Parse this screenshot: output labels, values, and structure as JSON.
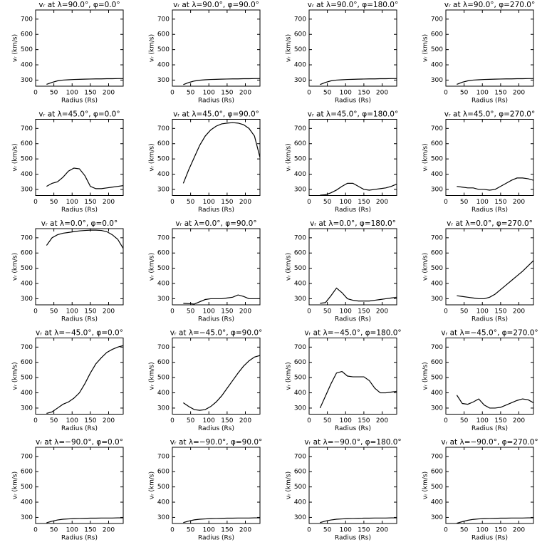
{
  "chart_data": [
    {
      "type": "line",
      "title": "vᵣ at λ=90.0°, φ=0.0°",
      "xlabel": "Radius (Rs)",
      "ylabel": "vᵣ (km/s)",
      "color": "#000000",
      "x": [
        30,
        45,
        60,
        75,
        90,
        105,
        120,
        135,
        150,
        165,
        180,
        195,
        210,
        225,
        240
      ],
      "values": [
        272,
        285,
        295,
        300,
        302,
        304,
        305,
        306,
        307,
        308,
        308,
        309,
        309,
        310,
        310
      ],
      "xlim": [
        0,
        240
      ],
      "ylim": [
        260,
        760
      ],
      "xticks": [
        0,
        50,
        100,
        150,
        200
      ],
      "yticks": [
        300,
        400,
        500,
        600,
        700
      ]
    },
    {
      "type": "line",
      "title": "vᵣ at λ=90.0°, φ=90.0°",
      "xlabel": "Radius (Rs)",
      "ylabel": "vᵣ (km/s)",
      "color": "#000000",
      "x": [
        30,
        45,
        60,
        75,
        90,
        105,
        120,
        135,
        150,
        165,
        180,
        195,
        210,
        225,
        240
      ],
      "values": [
        270,
        284,
        294,
        299,
        302,
        304,
        305,
        306,
        307,
        308,
        308,
        309,
        309,
        310,
        310
      ],
      "xlim": [
        0,
        240
      ],
      "ylim": [
        260,
        760
      ],
      "xticks": [
        0,
        50,
        100,
        150,
        200
      ],
      "yticks": [
        300,
        400,
        500,
        600,
        700
      ]
    },
    {
      "type": "line",
      "title": "vᵣ at λ=90.0°, φ=180.0°",
      "xlabel": "Radius (Rs)",
      "ylabel": "vᵣ (km/s)",
      "color": "#000000",
      "x": [
        30,
        45,
        60,
        75,
        90,
        105,
        120,
        135,
        150,
        165,
        180,
        195,
        210,
        225,
        240
      ],
      "values": [
        271,
        285,
        295,
        300,
        302,
        304,
        305,
        306,
        307,
        308,
        308,
        309,
        309,
        310,
        310
      ],
      "xlim": [
        0,
        240
      ],
      "ylim": [
        260,
        760
      ],
      "xticks": [
        0,
        50,
        100,
        150,
        200
      ],
      "yticks": [
        300,
        400,
        500,
        600,
        700
      ]
    },
    {
      "type": "line",
      "title": "vᵣ at λ=90.0°, φ=270.0°",
      "xlabel": "Radius (Rs)",
      "ylabel": "vᵣ (km/s)",
      "color": "#000000",
      "x": [
        30,
        45,
        60,
        75,
        90,
        105,
        120,
        135,
        150,
        165,
        180,
        195,
        210,
        225,
        240
      ],
      "values": [
        272,
        286,
        295,
        300,
        302,
        304,
        305,
        306,
        307,
        308,
        308,
        309,
        309,
        310,
        310
      ],
      "xlim": [
        0,
        240
      ],
      "ylim": [
        260,
        760
      ],
      "xticks": [
        0,
        50,
        100,
        150,
        200
      ],
      "yticks": [
        300,
        400,
        500,
        600,
        700
      ]
    },
    {
      "type": "line",
      "title": "vᵣ at λ=45.0°, φ=0.0°",
      "xlabel": "Radius (Rs)",
      "ylabel": "vᵣ (km/s)",
      "color": "#000000",
      "x": [
        30,
        45,
        60,
        75,
        90,
        105,
        120,
        135,
        150,
        165,
        180,
        195,
        210,
        225,
        240
      ],
      "values": [
        320,
        340,
        350,
        380,
        420,
        440,
        435,
        390,
        320,
        305,
        305,
        310,
        315,
        320,
        325
      ],
      "xlim": [
        0,
        240
      ],
      "ylim": [
        260,
        760
      ],
      "xticks": [
        0,
        50,
        100,
        150,
        200
      ],
      "yticks": [
        300,
        400,
        500,
        600,
        700
      ]
    },
    {
      "type": "line",
      "title": "vᵣ at λ=45.0°, φ=90.0°",
      "xlabel": "Radius (Rs)",
      "ylabel": "vᵣ (km/s)",
      "color": "#000000",
      "x": [
        30,
        45,
        60,
        75,
        90,
        105,
        120,
        135,
        150,
        165,
        180,
        195,
        210,
        225,
        240
      ],
      "values": [
        340,
        430,
        510,
        590,
        650,
        690,
        715,
        730,
        735,
        738,
        735,
        725,
        700,
        650,
        510
      ],
      "xlim": [
        0,
        240
      ],
      "ylim": [
        260,
        760
      ],
      "xticks": [
        0,
        50,
        100,
        150,
        200
      ],
      "yticks": [
        300,
        400,
        500,
        600,
        700
      ]
    },
    {
      "type": "line",
      "title": "vᵣ at λ=45.0°, φ=180.0°",
      "xlabel": "Radius (Rs)",
      "ylabel": "vᵣ (km/s)",
      "color": "#000000",
      "x": [
        30,
        45,
        60,
        75,
        90,
        105,
        120,
        135,
        150,
        165,
        180,
        195,
        210,
        225,
        240
      ],
      "values": [
        262,
        265,
        278,
        296,
        320,
        340,
        340,
        320,
        300,
        295,
        300,
        305,
        310,
        320,
        335
      ],
      "xlim": [
        0,
        240
      ],
      "ylim": [
        260,
        760
      ],
      "xticks": [
        0,
        50,
        100,
        150,
        200
      ],
      "yticks": [
        300,
        400,
        500,
        600,
        700
      ]
    },
    {
      "type": "line",
      "title": "vᵣ at λ=45.0°, φ=270.0°",
      "xlabel": "Radius (Rs)",
      "ylabel": "vᵣ (km/s)",
      "color": "#000000",
      "x": [
        30,
        45,
        60,
        75,
        90,
        105,
        120,
        135,
        150,
        165,
        180,
        195,
        210,
        225,
        240
      ],
      "values": [
        320,
        315,
        310,
        310,
        300,
        300,
        295,
        300,
        320,
        340,
        360,
        375,
        375,
        370,
        360
      ],
      "xlim": [
        0,
        240
      ],
      "ylim": [
        260,
        760
      ],
      "xticks": [
        0,
        50,
        100,
        150,
        200
      ],
      "yticks": [
        300,
        400,
        500,
        600,
        700
      ]
    },
    {
      "type": "line",
      "title": "vᵣ at λ=0.0°, φ=0.0°",
      "xlabel": "Radius (Rs)",
      "ylabel": "vᵣ (km/s)",
      "color": "#000000",
      "x": [
        30,
        45,
        60,
        75,
        90,
        105,
        120,
        135,
        150,
        165,
        180,
        195,
        210,
        225,
        240
      ],
      "values": [
        650,
        700,
        720,
        730,
        735,
        740,
        745,
        748,
        750,
        750,
        748,
        740,
        720,
        690,
        630
      ],
      "xlim": [
        0,
        240
      ],
      "ylim": [
        260,
        760
      ],
      "xticks": [
        0,
        50,
        100,
        150,
        200
      ],
      "yticks": [
        300,
        400,
        500,
        600,
        700
      ]
    },
    {
      "type": "line",
      "title": "vᵣ at λ=0.0°, φ=90.0°",
      "xlabel": "Radius (Rs)",
      "ylabel": "vᵣ (km/s)",
      "color": "#000000",
      "x": [
        30,
        45,
        60,
        75,
        90,
        105,
        120,
        135,
        150,
        165,
        180,
        195,
        210,
        225,
        240
      ],
      "values": [
        270,
        268,
        265,
        280,
        295,
        300,
        300,
        300,
        305,
        310,
        325,
        315,
        300,
        300,
        300
      ],
      "xlim": [
        0,
        240
      ],
      "ylim": [
        260,
        760
      ],
      "xticks": [
        0,
        50,
        100,
        150,
        200
      ],
      "yticks": [
        300,
        400,
        500,
        600,
        700
      ]
    },
    {
      "type": "line",
      "title": "vᵣ at λ=0.0°, φ=180.0°",
      "xlabel": "Radius (Rs)",
      "ylabel": "vᵣ (km/s)",
      "color": "#000000",
      "x": [
        30,
        45,
        60,
        75,
        90,
        105,
        120,
        135,
        150,
        165,
        180,
        195,
        210,
        225,
        240
      ],
      "values": [
        270,
        275,
        320,
        370,
        340,
        300,
        290,
        285,
        285,
        285,
        290,
        295,
        300,
        305,
        310
      ],
      "xlim": [
        0,
        240
      ],
      "ylim": [
        260,
        760
      ],
      "xticks": [
        0,
        50,
        100,
        150,
        200
      ],
      "yticks": [
        300,
        400,
        500,
        600,
        700
      ]
    },
    {
      "type": "line",
      "title": "vᵣ at λ=0.0°, φ=270.0°",
      "xlabel": "Radius (Rs)",
      "ylabel": "vᵣ (km/s)",
      "color": "#000000",
      "x": [
        30,
        45,
        60,
        75,
        90,
        105,
        120,
        135,
        150,
        165,
        180,
        195,
        210,
        225,
        240
      ],
      "values": [
        320,
        315,
        310,
        305,
        300,
        300,
        310,
        330,
        360,
        390,
        420,
        450,
        480,
        515,
        550
      ],
      "xlim": [
        0,
        240
      ],
      "ylim": [
        260,
        760
      ],
      "xticks": [
        0,
        50,
        100,
        150,
        200
      ],
      "yticks": [
        300,
        400,
        500,
        600,
        700
      ]
    },
    {
      "type": "line",
      "title": "vᵣ at λ=−45.0°, φ=0.0°",
      "xlabel": "Radius (Rs)",
      "ylabel": "vᵣ (km/s)",
      "color": "#000000",
      "x": [
        30,
        45,
        60,
        75,
        90,
        105,
        120,
        135,
        150,
        165,
        180,
        195,
        210,
        225,
        240
      ],
      "values": [
        265,
        275,
        300,
        325,
        340,
        365,
        400,
        460,
        530,
        590,
        630,
        665,
        685,
        700,
        710
      ],
      "xlim": [
        0,
        240
      ],
      "ylim": [
        260,
        760
      ],
      "xticks": [
        0,
        50,
        100,
        150,
        200
      ],
      "yticks": [
        300,
        400,
        500,
        600,
        700
      ]
    },
    {
      "type": "line",
      "title": "vᵣ at λ=−45.0°, φ=90.0°",
      "xlabel": "Radius (Rs)",
      "ylabel": "vᵣ (km/s)",
      "color": "#000000",
      "x": [
        30,
        45,
        60,
        75,
        90,
        105,
        120,
        135,
        150,
        165,
        180,
        195,
        210,
        225,
        240
      ],
      "values": [
        335,
        310,
        290,
        285,
        290,
        310,
        340,
        380,
        430,
        480,
        530,
        575,
        610,
        635,
        645
      ],
      "xlim": [
        0,
        240
      ],
      "ylim": [
        260,
        760
      ],
      "xticks": [
        0,
        50,
        100,
        150,
        200
      ],
      "yticks": [
        300,
        400,
        500,
        600,
        700
      ]
    },
    {
      "type": "line",
      "title": "vᵣ at λ=−45.0°, φ=180.0°",
      "xlabel": "Radius (Rs)",
      "ylabel": "vᵣ (km/s)",
      "color": "#000000",
      "x": [
        30,
        45,
        60,
        75,
        90,
        105,
        120,
        135,
        150,
        165,
        180,
        195,
        210,
        225,
        240
      ],
      "values": [
        300,
        380,
        460,
        530,
        540,
        510,
        505,
        505,
        505,
        480,
        430,
        400,
        400,
        405,
        410
      ],
      "xlim": [
        0,
        240
      ],
      "ylim": [
        260,
        760
      ],
      "xticks": [
        0,
        50,
        100,
        150,
        200
      ],
      "yticks": [
        300,
        400,
        500,
        600,
        700
      ]
    },
    {
      "type": "line",
      "title": "vᵣ at λ=−45.0°, φ=270.0°",
      "xlabel": "Radius (Rs)",
      "ylabel": "vᵣ (km/s)",
      "color": "#000000",
      "x": [
        30,
        45,
        60,
        75,
        90,
        105,
        120,
        135,
        150,
        165,
        180,
        195,
        210,
        225,
        240
      ],
      "values": [
        385,
        330,
        325,
        340,
        360,
        320,
        300,
        300,
        305,
        320,
        335,
        350,
        360,
        355,
        335
      ],
      "xlim": [
        0,
        240
      ],
      "ylim": [
        260,
        760
      ],
      "xticks": [
        0,
        50,
        100,
        150,
        200
      ],
      "yticks": [
        300,
        400,
        500,
        600,
        700
      ]
    },
    {
      "type": "line",
      "title": "vᵣ at λ=−90.0°, φ=0.0°",
      "xlabel": "Radius (Rs)",
      "ylabel": "vᵣ (km/s)",
      "color": "#000000",
      "x": [
        30,
        45,
        60,
        75,
        90,
        105,
        120,
        135,
        150,
        165,
        180,
        195,
        210,
        225,
        240
      ],
      "values": [
        265,
        275,
        283,
        288,
        290,
        292,
        293,
        294,
        295,
        295,
        296,
        296,
        296,
        297,
        297
      ],
      "xlim": [
        0,
        240
      ],
      "ylim": [
        260,
        760
      ],
      "xticks": [
        0,
        50,
        100,
        150,
        200
      ],
      "yticks": [
        300,
        400,
        500,
        600,
        700
      ]
    },
    {
      "type": "line",
      "title": "vᵣ at λ=−90.0°, φ=90.0°",
      "xlabel": "Radius (Rs)",
      "ylabel": "vᵣ (km/s)",
      "color": "#000000",
      "x": [
        30,
        45,
        60,
        75,
        90,
        105,
        120,
        135,
        150,
        165,
        180,
        195,
        210,
        225,
        240
      ],
      "values": [
        266,
        276,
        284,
        288,
        290,
        292,
        293,
        294,
        295,
        295,
        296,
        296,
        296,
        297,
        297
      ],
      "xlim": [
        0,
        240
      ],
      "ylim": [
        260,
        760
      ],
      "xticks": [
        0,
        50,
        100,
        150,
        200
      ],
      "yticks": [
        300,
        400,
        500,
        600,
        700
      ]
    },
    {
      "type": "line",
      "title": "vᵣ at λ=−90.0°, φ=180.0°",
      "xlabel": "Radius (Rs)",
      "ylabel": "vᵣ (km/s)",
      "color": "#000000",
      "x": [
        30,
        45,
        60,
        75,
        90,
        105,
        120,
        135,
        150,
        165,
        180,
        195,
        210,
        225,
        240
      ],
      "values": [
        266,
        276,
        283,
        288,
        290,
        292,
        293,
        294,
        295,
        295,
        296,
        296,
        296,
        297,
        297
      ],
      "xlim": [
        0,
        240
      ],
      "ylim": [
        260,
        760
      ],
      "xticks": [
        0,
        50,
        100,
        150,
        200
      ],
      "yticks": [
        300,
        400,
        500,
        600,
        700
      ]
    },
    {
      "type": "line",
      "title": "vᵣ at λ=−90.0°, φ=270.0°",
      "xlabel": "Radius (Rs)",
      "ylabel": "vᵣ (km/s)",
      "color": "#000000",
      "x": [
        30,
        45,
        60,
        75,
        90,
        105,
        120,
        135,
        150,
        165,
        180,
        195,
        210,
        225,
        240
      ],
      "values": [
        262,
        272,
        281,
        287,
        290,
        292,
        293,
        294,
        295,
        295,
        296,
        296,
        296,
        297,
        297
      ],
      "xlim": [
        0,
        240
      ],
      "ylim": [
        260,
        760
      ],
      "xticks": [
        0,
        50,
        100,
        150,
        200
      ],
      "yticks": [
        300,
        400,
        500,
        600,
        700
      ]
    }
  ]
}
